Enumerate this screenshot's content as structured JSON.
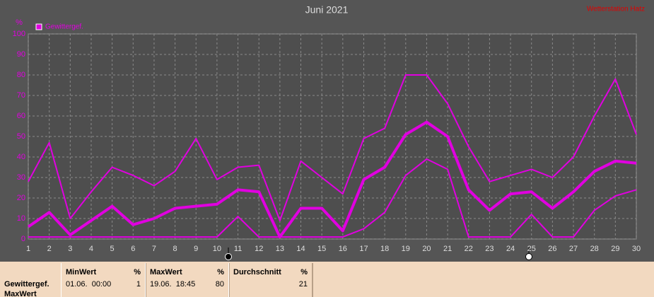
{
  "chart_data": {
    "type": "line",
    "title": "Juni 2021",
    "corner_note": "Wetterstation Hatz",
    "y_label": "%",
    "x": [
      1,
      2,
      3,
      4,
      5,
      6,
      7,
      8,
      9,
      10,
      11,
      12,
      13,
      14,
      15,
      16,
      17,
      18,
      19,
      20,
      21,
      22,
      23,
      24,
      25,
      26,
      27,
      28,
      29,
      30
    ],
    "xlim": [
      1,
      30
    ],
    "ylim": [
      0,
      100
    ],
    "yticks": [
      0,
      10,
      20,
      30,
      40,
      50,
      60,
      70,
      80,
      90,
      100
    ],
    "grid": true,
    "series": [
      {
        "color": "#e000e0",
        "width": 2,
        "values": [
          28,
          47,
          10,
          23,
          35,
          31,
          26,
          33,
          49,
          29,
          35,
          36,
          9,
          38,
          30,
          22,
          49,
          54,
          80,
          80,
          66,
          45,
          28,
          31,
          34,
          30,
          40,
          60,
          78,
          51
        ]
      },
      {
        "name": "Gewittergef.",
        "color": "#e000e0",
        "width": 4,
        "values": [
          6,
          13,
          2,
          9,
          16,
          7,
          10,
          15,
          16,
          17,
          24,
          23,
          1,
          15,
          15,
          4,
          29,
          35,
          51,
          57,
          50,
          24,
          14,
          22,
          23,
          15,
          23,
          33,
          38,
          37
        ]
      },
      {
        "color": "#e000e0",
        "width": 2,
        "values": [
          1,
          1,
          1,
          1,
          1,
          1,
          1,
          1,
          1,
          1,
          11,
          1,
          1,
          1,
          1,
          1,
          5,
          13,
          31,
          39,
          34,
          1,
          1,
          1,
          12,
          1,
          1,
          14,
          21,
          24
        ]
      }
    ]
  },
  "table": {
    "row_labels": [
      "Gewittergef.",
      "MaxWert"
    ],
    "columns": [
      {
        "header": "MinWert",
        "unit": "%",
        "time": "01.06.  00:00",
        "value": 1
      },
      {
        "header": "MaxWert",
        "unit": "%",
        "time": "19.06.  18:45",
        "value": 80
      },
      {
        "header": "Durchschnitt",
        "unit": "%",
        "value": 21
      }
    ]
  }
}
